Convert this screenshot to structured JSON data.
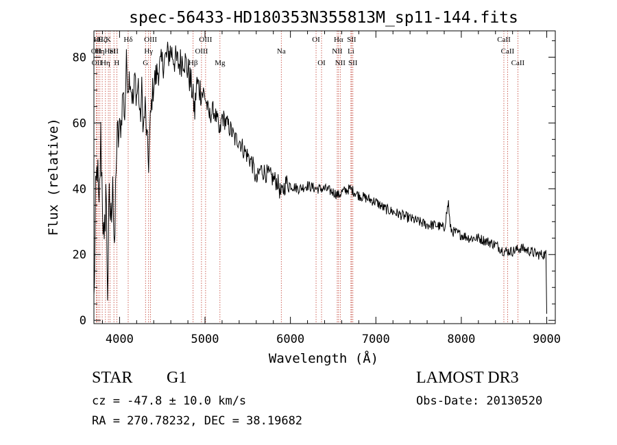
{
  "chart_data": {
    "type": "line",
    "title": "spec-56433-HD180353N355813M_sp11-144.fits",
    "xlabel": "Wavelength (Å)",
    "ylabel": "Flux (relative)",
    "xlim": [
      3700,
      9100
    ],
    "ylim": [
      -1,
      88
    ],
    "xticks": [
      4000,
      5000,
      6000,
      7000,
      8000,
      9000
    ],
    "yticks": [
      0,
      20,
      40,
      60,
      80
    ],
    "grid": false,
    "series": [
      {
        "name": "spectrum",
        "x": [
          3700,
          3720,
          3740,
          3760,
          3780,
          3800,
          3820,
          3840,
          3860,
          3880,
          3900,
          3920,
          3940,
          3960,
          3980,
          4000,
          4020,
          4040,
          4060,
          4080,
          4100,
          4120,
          4140,
          4160,
          4180,
          4200,
          4220,
          4240,
          4260,
          4280,
          4300,
          4320,
          4340,
          4360,
          4380,
          4400,
          4450,
          4500,
          4550,
          4600,
          4650,
          4700,
          4750,
          4800,
          4850,
          4880,
          4900,
          4950,
          5000,
          5050,
          5100,
          5150,
          5170,
          5200,
          5250,
          5300,
          5350,
          5400,
          5450,
          5500,
          5550,
          5580,
          5600,
          5650,
          5700,
          5750,
          5800,
          5850,
          5890,
          5950,
          6000,
          6100,
          6200,
          6300,
          6400,
          6500,
          6563,
          6600,
          6700,
          6800,
          6900,
          7000,
          7100,
          7200,
          7300,
          7400,
          7500,
          7600,
          7700,
          7800,
          7850,
          7870,
          7900,
          8000,
          8100,
          8200,
          8300,
          8400,
          8500,
          8600,
          8700,
          8800,
          8900,
          8990,
          9000
        ],
        "y": [
          5,
          35,
          48,
          30,
          55,
          38,
          18,
          42,
          10,
          35,
          30,
          47,
          15,
          50,
          55,
          58,
          60,
          70,
          62,
          78,
          72,
          75,
          70,
          66,
          74,
          68,
          72,
          60,
          70,
          58,
          65,
          55,
          48,
          60,
          68,
          72,
          76,
          78,
          80,
          82,
          79,
          78,
          80,
          76,
          70,
          63,
          72,
          70,
          68,
          62,
          64,
          60,
          56,
          62,
          60,
          58,
          55,
          55,
          52,
          50,
          48,
          45,
          42,
          46,
          45,
          44,
          43,
          42,
          38,
          42,
          41,
          40,
          41,
          40,
          40,
          39,
          38,
          39,
          40,
          38,
          37,
          36,
          34,
          33,
          32,
          31,
          30,
          29,
          29,
          28,
          36,
          28,
          27,
          26,
          25,
          25,
          24,
          23,
          21,
          21,
          22,
          21,
          20,
          20,
          2
        ]
      }
    ],
    "lines": [
      {
        "w": 3727,
        "label": "OII",
        "row": 1
      },
      {
        "w": 3734,
        "label": "OII",
        "row": 2
      },
      {
        "w": 3750,
        "label": "Hθ",
        "row": 0
      },
      {
        "w": 3770,
        "label": "Hη",
        "row": 1
      },
      {
        "w": 3797,
        "label": "Hζ",
        "row": 0
      },
      {
        "w": 3835,
        "label": "Hη",
        "row": 2
      },
      {
        "w": 3869,
        "label": "K",
        "row": 0
      },
      {
        "w": 3889,
        "label": "HeI",
        "row": 1
      },
      {
        "w": 3934,
        "label": "SII",
        "row": 1
      },
      {
        "w": 3968,
        "label": "H",
        "row": 2
      },
      {
        "w": 4101,
        "label": "Hδ",
        "row": 0
      },
      {
        "w": 4304,
        "label": "G",
        "row": 2
      },
      {
        "w": 4340,
        "label": "Hγ",
        "row": 1
      },
      {
        "w": 4363,
        "label": "OIII",
        "row": 0
      },
      {
        "w": 4861,
        "label": "Hβ",
        "row": 2
      },
      {
        "w": 4959,
        "label": "OIII",
        "row": 1
      },
      {
        "w": 5007,
        "label": "OIII",
        "row": 0
      },
      {
        "w": 5175,
        "label": "Mg",
        "row": 2
      },
      {
        "w": 5893,
        "label": "Na",
        "row": 1
      },
      {
        "w": 6300,
        "label": "OI",
        "row": 0
      },
      {
        "w": 6364,
        "label": "OI",
        "row": 2
      },
      {
        "w": 6548,
        "label": "NII",
        "row": 1
      },
      {
        "w": 6563,
        "label": "Hα",
        "row": 0
      },
      {
        "w": 6583,
        "label": "NII",
        "row": 2
      },
      {
        "w": 6708,
        "label": "Li",
        "row": 1
      },
      {
        "w": 6716,
        "label": "SII",
        "row": 0
      },
      {
        "w": 6731,
        "label": "SII",
        "row": 2
      },
      {
        "w": 8498,
        "label": "CaII",
        "row": 0
      },
      {
        "w": 8542,
        "label": "CaII",
        "row": 1
      },
      {
        "w": 8662,
        "label": "CaII",
        "row": 2
      }
    ]
  },
  "info": {
    "class": "STAR",
    "subclass": "G1",
    "survey": "LAMOST DR3",
    "cz": "cz = -47.8 ± 10.0 km/s",
    "obs_date": "Obs-Date: 20130520",
    "coords": "RA = 270.78232, DEC =  38.19682"
  }
}
